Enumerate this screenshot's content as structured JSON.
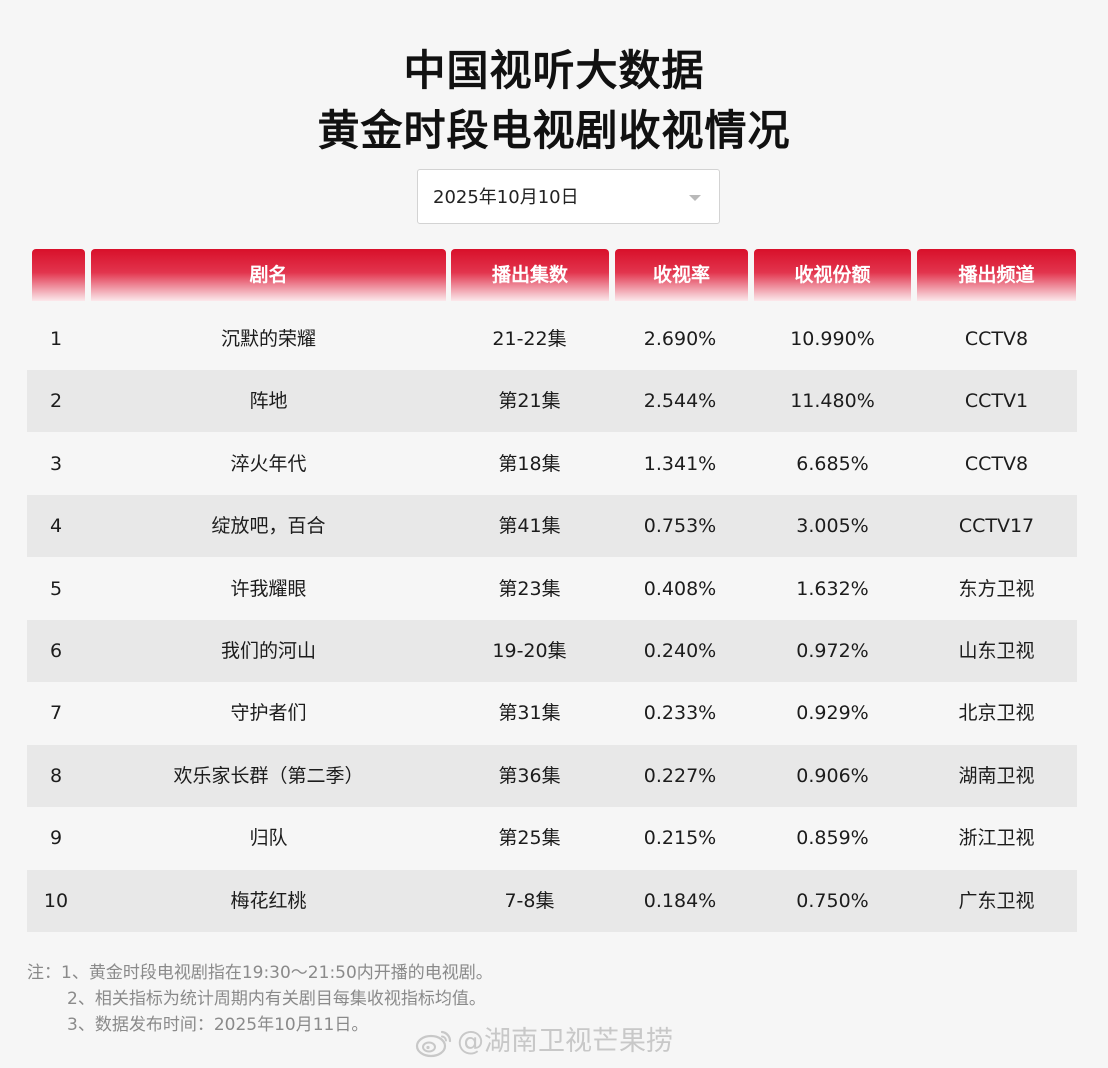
{
  "title": {
    "line1": "中国视听大数据",
    "line2": "黄金时段电视剧收视情况"
  },
  "date_select": {
    "value": "2025年10月10日"
  },
  "table": {
    "headers": [
      "",
      "剧名",
      "播出集数",
      "收视率",
      "收视份额",
      "播出频道"
    ],
    "rows": [
      [
        "1",
        "沉默的荣耀",
        "21-22集",
        "2.690%",
        "10.990%",
        "CCTV8"
      ],
      [
        "2",
        "阵地",
        "第21集",
        "2.544%",
        "11.480%",
        "CCTV1"
      ],
      [
        "3",
        "淬火年代",
        "第18集",
        "1.341%",
        "6.685%",
        "CCTV8"
      ],
      [
        "4",
        "绽放吧，百合",
        "第41集",
        "0.753%",
        "3.005%",
        "CCTV17"
      ],
      [
        "5",
        "许我耀眼",
        "第23集",
        "0.408%",
        "1.632%",
        "东方卫视"
      ],
      [
        "6",
        "我们的河山",
        "19-20集",
        "0.240%",
        "0.972%",
        "山东卫视"
      ],
      [
        "7",
        "守护者们",
        "第31集",
        "0.233%",
        "0.929%",
        "北京卫视"
      ],
      [
        "8",
        "欢乐家长群（第二季）",
        "第36集",
        "0.227%",
        "0.906%",
        "湖南卫视"
      ],
      [
        "9",
        "归队",
        "第25集",
        "0.215%",
        "0.859%",
        "浙江卫视"
      ],
      [
        "10",
        "梅花红桃",
        "7-8集",
        "0.184%",
        "0.750%",
        "广东卫视"
      ]
    ]
  },
  "notes": [
    "注：1、黄金时段电视剧指在19:30～21:50内开播的电视剧。",
    "2、相关指标为统计周期内有关剧目每集收视指标均值。",
    "3、数据发布时间：2025年10月11日。"
  ],
  "watermark": {
    "text": "@湖南卫视芒果捞",
    "icon": "weibo-icon"
  },
  "colors": {
    "header_red": "#d8102a",
    "alt_row": "#e8e8e8",
    "background": "#f6f6f6"
  }
}
